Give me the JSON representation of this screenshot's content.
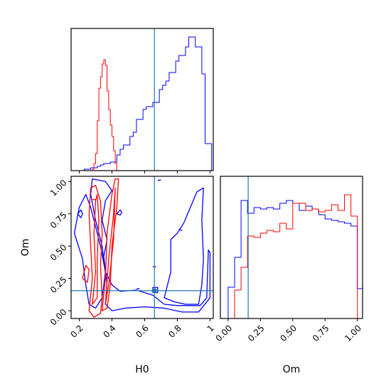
{
  "chart_data": {
    "type": "corner",
    "params": [
      "H0",
      "Om"
    ],
    "truth": {
      "H0": 0.66,
      "Om": 0.155
    },
    "colors": {
      "series_a": "#0000ff",
      "series_b": "#ff0000",
      "truth": "#1f77b4"
    },
    "panels": {
      "h0_hist": {
        "type": "histogram",
        "x_range": [
          0.15,
          1.02
        ],
        "x_ticks": [
          0.2,
          0.4,
          0.6,
          0.8,
          1.0
        ],
        "series": [
          {
            "color": "#0000ff",
            "bin_edges": [
              0.15,
              0.17,
              0.19,
              0.21,
              0.23,
              0.25,
              0.27,
              0.29,
              0.31,
              0.33,
              0.35,
              0.37,
              0.39,
              0.41,
              0.43,
              0.45,
              0.47,
              0.49,
              0.51,
              0.53,
              0.55,
              0.57,
              0.59,
              0.61,
              0.63,
              0.65,
              0.67,
              0.69,
              0.71,
              0.73,
              0.75,
              0.77,
              0.79,
              0.81,
              0.83,
              0.85,
              0.87,
              0.89,
              0.91,
              0.93,
              0.95,
              0.97,
              0.99,
              1.01
            ],
            "heights": [
              0.0,
              0.0,
              0.0,
              0.0,
              0.01,
              0.01,
              0.02,
              0.02,
              0.03,
              0.04,
              0.05,
              0.05,
              0.06,
              0.06,
              0.11,
              0.15,
              0.18,
              0.18,
              0.24,
              0.27,
              0.36,
              0.36,
              0.43,
              0.45,
              0.45,
              0.48,
              0.48,
              0.57,
              0.6,
              0.63,
              0.69,
              0.69,
              0.77,
              0.81,
              0.81,
              0.87,
              0.94,
              0.94,
              0.87,
              0.87,
              0.68,
              0.19,
              0.19
            ]
          },
          {
            "color": "#ff0000",
            "bin_edges": [
              0.27,
              0.28,
              0.29,
              0.3,
              0.31,
              0.32,
              0.33,
              0.34,
              0.35,
              0.36,
              0.37,
              0.38,
              0.39,
              0.4,
              0.41,
              0.42,
              0.43,
              0.44
            ],
            "heights": [
              0.0,
              0.01,
              0.05,
              0.12,
              0.35,
              0.58,
              0.66,
              0.75,
              0.78,
              0.74,
              0.56,
              0.43,
              0.32,
              0.24,
              0.14,
              0.05,
              0.0
            ]
          }
        ]
      },
      "om_hist": {
        "type": "histogram",
        "x_range": [
          -0.06,
          1.04
        ],
        "x_ticks": [
          0.0,
          0.25,
          0.5,
          0.75,
          1.0
        ],
        "x_tick_labels": [
          "0.00",
          "0.25",
          "0.50",
          "0.75",
          "1.00"
        ],
        "xlabel": "Om",
        "series": [
          {
            "color": "#0000ff",
            "bin_edges": [
              0.0,
              0.05,
              0.1,
              0.15,
              0.2,
              0.25,
              0.3,
              0.35,
              0.4,
              0.45,
              0.5,
              0.55,
              0.6,
              0.65,
              0.7,
              0.75,
              0.8,
              0.85,
              0.9,
              0.95,
              1.0,
              1.05
            ],
            "heights": [
              0.22,
              0.43,
              0.83,
              0.74,
              0.78,
              0.77,
              0.78,
              0.77,
              0.81,
              0.83,
              0.81,
              0.76,
              0.79,
              0.77,
              0.73,
              0.7,
              0.69,
              0.68,
              0.67,
              0.65,
              0.21
            ]
          },
          {
            "color": "#ff0000",
            "bin_edges": [
              0.0,
              0.05,
              0.1,
              0.15,
              0.2,
              0.25,
              0.3,
              0.35,
              0.4,
              0.45,
              0.5,
              0.55,
              0.6,
              0.65,
              0.7,
              0.75,
              0.8,
              0.85,
              0.9,
              0.95,
              1.0
            ],
            "heights": [
              0.0,
              0.2,
              0.36,
              0.58,
              0.57,
              0.6,
              0.62,
              0.61,
              0.67,
              0.63,
              0.81,
              0.81,
              0.76,
              0.77,
              0.75,
              0.76,
              0.8,
              0.76,
              0.87,
              0.72
            ]
          }
        ]
      },
      "contour": {
        "type": "contour",
        "x_range": [
          0.15,
          1.02
        ],
        "y_range": [
          -0.06,
          1.04
        ],
        "x_ticks": [
          0.2,
          0.4,
          0.6,
          0.8,
          1.0
        ],
        "y_ticks": [
          0.0,
          0.25,
          0.5,
          0.75,
          1.0
        ],
        "y_tick_labels": [
          "0.00",
          "0.25",
          "0.50",
          "0.75",
          "1.00"
        ],
        "xlabel": "H0",
        "ylabel": "Om",
        "contours": [
          {
            "color": "#0000ff",
            "points": [
              [
                0.28,
                1.02
              ],
              [
                0.36,
                1.0
              ],
              [
                0.4,
                0.93
              ],
              [
                0.36,
                0.85
              ],
              [
                0.34,
                0.7
              ],
              [
                0.37,
                0.55
              ],
              [
                0.35,
                0.42
              ],
              [
                0.37,
                0.2
              ],
              [
                0.36,
                0.05
              ],
              [
                0.4,
                0.0
              ],
              [
                0.48,
                0.02
              ],
              [
                0.6,
                0.03
              ],
              [
                0.72,
                0.02
              ],
              [
                0.83,
                -0.01
              ],
              [
                0.93,
                -0.01
              ],
              [
                1.0,
                0.1
              ],
              [
                1.0,
                0.45
              ],
              [
                0.99,
                0.47
              ],
              [
                0.98,
                0.1
              ],
              [
                0.94,
                0.04
              ],
              [
                0.8,
                0.04
              ],
              [
                0.72,
                0.05
              ],
              [
                0.65,
                0.12
              ],
              [
                0.55,
                0.16
              ],
              [
                0.45,
                0.15
              ],
              [
                0.4,
                0.2
              ],
              [
                0.36,
                0.3
              ],
              [
                0.34,
                0.5
              ],
              [
                0.3,
                0.7
              ],
              [
                0.27,
                0.9
              ]
            ]
          },
          {
            "color": "#0000ff",
            "points": [
              [
                0.72,
                0.1
              ],
              [
                0.76,
                0.3
              ],
              [
                0.76,
                0.55
              ],
              [
                0.8,
                0.6
              ],
              [
                0.84,
                0.68
              ],
              [
                0.88,
                0.8
              ],
              [
                0.92,
                0.92
              ],
              [
                0.96,
                0.95
              ],
              [
                0.95,
                0.7
              ],
              [
                0.96,
                0.4
              ],
              [
                0.95,
                0.2
              ],
              [
                0.93,
                0.05
              ],
              [
                0.85,
                0.05
              ],
              [
                0.78,
                0.07
              ]
            ]
          },
          {
            "color": "#0000ff",
            "points": [
              [
                0.17,
                0.6
              ],
              [
                0.22,
                0.4
              ],
              [
                0.24,
                0.2
              ],
              [
                0.26,
                0.05
              ],
              [
                0.3,
                0.02
              ],
              [
                0.34,
                0.1
              ],
              [
                0.36,
                0.3
              ],
              [
                0.33,
                0.5
              ],
              [
                0.3,
                0.65
              ],
              [
                0.27,
                0.8
              ],
              [
                0.24,
                0.9
              ],
              [
                0.2,
                0.8
              ]
            ]
          },
          {
            "color": "#0000ff",
            "points": [
              [
                0.19,
                0.75
              ],
              [
                0.21,
                0.72
              ],
              [
                0.22,
                0.75
              ],
              [
                0.21,
                0.78
              ]
            ]
          },
          {
            "color": "#0000ff",
            "points": [
              [
                0.43,
                0.75
              ],
              [
                0.45,
                0.74
              ],
              [
                0.46,
                0.76
              ],
              [
                0.45,
                0.78
              ]
            ]
          },
          {
            "color": "#0000ff",
            "points": [
              [
                0.68,
                1.01
              ],
              [
                0.7,
                1.01
              ]
            ]
          },
          {
            "color": "#0000ff",
            "points": [
              [
                0.81,
                0.63
              ],
              [
                0.83,
                0.62
              ]
            ]
          },
          {
            "color": "#0000ff",
            "points": [
              [
                0.65,
                0.34
              ],
              [
                0.67,
                0.34
              ]
            ]
          },
          {
            "color": "#0000ff",
            "points": [
              [
                0.55,
                0.17
              ],
              [
                0.57,
                0.17
              ]
            ]
          },
          {
            "color": "#0000ff",
            "points": [
              [
                0.65,
                0.14
              ],
              [
                0.68,
                0.14
              ],
              [
                0.68,
                0.18
              ],
              [
                0.65,
                0.18
              ]
            ]
          },
          {
            "color": "#ff0000",
            "points": [
              [
                0.26,
                0.0
              ],
              [
                0.28,
                0.25
              ],
              [
                0.27,
                0.5
              ],
              [
                0.26,
                0.75
              ],
              [
                0.27,
                0.95
              ],
              [
                0.3,
                0.97
              ],
              [
                0.33,
                0.85
              ],
              [
                0.34,
                0.6
              ],
              [
                0.33,
                0.35
              ],
              [
                0.34,
                0.1
              ],
              [
                0.33,
                -0.02
              ],
              [
                0.29,
                -0.05
              ]
            ]
          },
          {
            "color": "#ff0000",
            "points": [
              [
                0.28,
                0.05
              ],
              [
                0.3,
                0.3
              ],
              [
                0.29,
                0.6
              ],
              [
                0.3,
                0.85
              ],
              [
                0.31,
                0.9
              ],
              [
                0.32,
                0.7
              ],
              [
                0.31,
                0.4
              ],
              [
                0.31,
                0.1
              ]
            ]
          },
          {
            "color": "#ff0000",
            "points": [
              [
                0.34,
                0.0
              ],
              [
                0.36,
                0.25
              ],
              [
                0.37,
                0.6
              ],
              [
                0.4,
                0.9
              ],
              [
                0.42,
                1.02
              ],
              [
                0.44,
                1.02
              ],
              [
                0.43,
                0.8
              ],
              [
                0.4,
                0.5
              ],
              [
                0.39,
                0.2
              ],
              [
                0.37,
                0.02
              ]
            ]
          },
          {
            "color": "#ff0000",
            "points": [
              [
                0.36,
                0.05
              ],
              [
                0.38,
                0.4
              ],
              [
                0.41,
                0.75
              ],
              [
                0.42,
                0.95
              ],
              [
                0.41,
                0.55
              ],
              [
                0.38,
                0.2
              ]
            ]
          },
          {
            "color": "#ff0000",
            "points": [
              [
                0.22,
                0.25
              ],
              [
                0.24,
                0.35
              ],
              [
                0.26,
                0.32
              ],
              [
                0.25,
                0.22
              ]
            ]
          },
          {
            "color": "#ff0000",
            "points": [
              [
                0.28,
                0.86
              ],
              [
                0.3,
                0.86
              ]
            ]
          }
        ]
      }
    }
  }
}
